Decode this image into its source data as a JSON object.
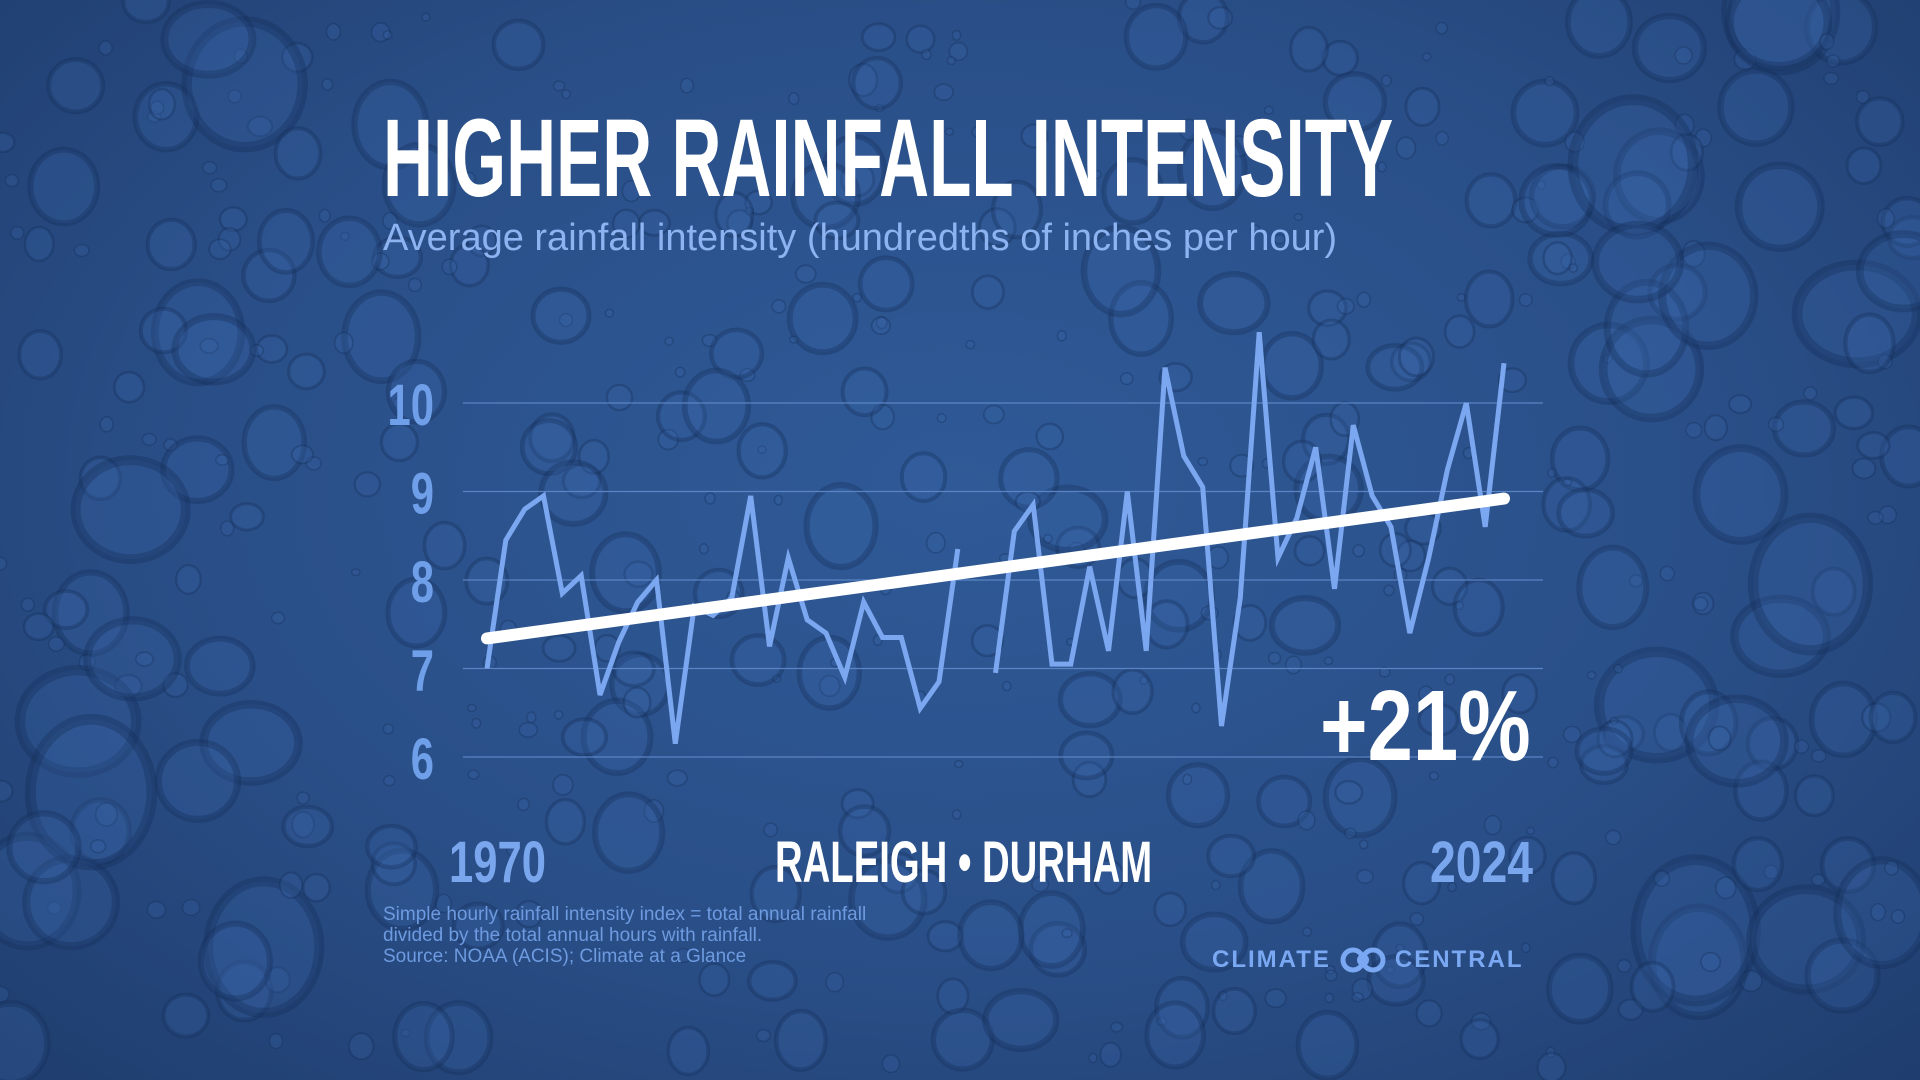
{
  "title": "HIGHER RAINFALL INTENSITY",
  "subtitle": "Average rainfall intensity (hundredths of inches per hour)",
  "location": "RALEIGH • DURHAM",
  "change_label": "+21%",
  "footnote": [
    "Simple hourly rainfall intensity index = total annual rainfall",
    "divided by the total annual hours with rainfall.",
    "Source: NOAA (ACIS); Climate at a Glance"
  ],
  "logo": {
    "left": "CLIMATE",
    "right": "CENTRAL"
  },
  "colors": {
    "background": "#2a4f88",
    "series": "#7ba7f0",
    "trend": "#ffffff",
    "ticks": "#6f9fe8",
    "grid": "#5b84c4"
  },
  "chart_data": {
    "type": "line",
    "title": "HIGHER RAINFALL INTENSITY",
    "ylabel": "Average rainfall intensity (hundredths of inches per hour)",
    "x_tick_labels": [
      "1970",
      "2024"
    ],
    "xlim": [
      1970,
      2024
    ],
    "ylim": [
      6,
      10
    ],
    "y_ticks": [
      6,
      7,
      8,
      9,
      10
    ],
    "grid": true,
    "x": [
      1970,
      1971,
      1972,
      1973,
      1974,
      1975,
      1976,
      1977,
      1978,
      1979,
      1980,
      1981,
      1982,
      1983,
      1984,
      1985,
      1986,
      1987,
      1988,
      1989,
      1990,
      1991,
      1992,
      1993,
      1994,
      1995,
      1996,
      1997,
      1998,
      1999,
      2000,
      2001,
      2002,
      2003,
      2004,
      2005,
      2006,
      2007,
      2008,
      2009,
      2010,
      2011,
      2012,
      2013,
      2014,
      2015,
      2016,
      2017,
      2018,
      2019,
      2020,
      2021,
      2022,
      2023,
      2024
    ],
    "values": [
      7.0,
      8.45,
      8.8,
      8.95,
      7.85,
      8.05,
      6.7,
      7.3,
      7.75,
      8.0,
      6.15,
      7.7,
      7.6,
      7.8,
      8.95,
      7.25,
      8.25,
      7.55,
      7.4,
      6.9,
      7.75,
      7.35,
      7.35,
      6.55,
      6.85,
      8.35,
      null,
      6.95,
      8.55,
      8.85,
      7.05,
      7.05,
      8.15,
      7.2,
      9.0,
      7.2,
      10.4,
      9.4,
      9.05,
      6.35,
      7.8,
      10.8,
      8.25,
      8.7,
      9.5,
      7.9,
      9.75,
      8.95,
      8.6,
      7.4,
      8.25,
      9.25,
      10.0,
      8.6,
      10.45
    ],
    "trend": {
      "start": [
        1970,
        7.34
      ],
      "end": [
        2024,
        8.92
      ]
    },
    "annotation": "+21%"
  }
}
